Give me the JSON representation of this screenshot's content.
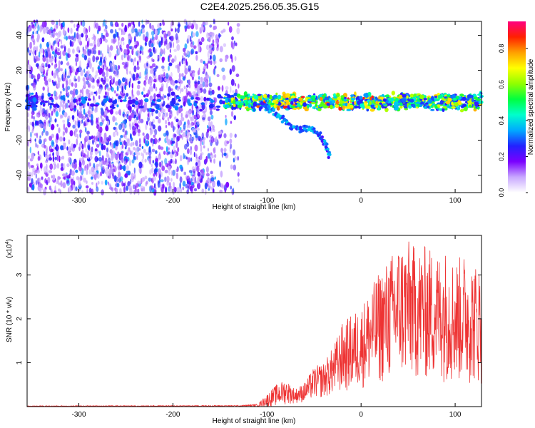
{
  "title": "C2E4.2025.256.05.35.G15",
  "chart_data": [
    {
      "type": "heatmap",
      "name": "spectrogram",
      "xlabel": "Height of straight line (km)",
      "ylabel": "Frequency (Hz)",
      "xlim": [
        -355,
        128
      ],
      "ylim": [
        -50,
        48
      ],
      "xticks": [
        -300,
        -200,
        -100,
        0,
        100
      ],
      "yticks": [
        -40,
        -20,
        0,
        20,
        40
      ],
      "colorbar": {
        "label": "Normalized spectral amplitude",
        "range": [
          0,
          0.95
        ],
        "ticks": [
          "0.0",
          "0.2",
          "0.4",
          "0.6",
          "0.8"
        ],
        "tick_values": [
          0,
          0.2,
          0.4,
          0.6,
          0.8
        ],
        "colors": [
          "#ffffff",
          "#c8a8ff",
          "#7a00ff",
          "#2222ff",
          "#00aaff",
          "#00ffcc",
          "#00ff40",
          "#90ff00",
          "#ffff00",
          "#ffa000",
          "#ff2000",
          "#ff0080"
        ]
      },
      "features": {
        "noise_region_x": [
          -355,
          -130
        ],
        "signal_band_center_hz": 2,
        "signal_band_halfwidth_hz": 4,
        "dip_track": [
          {
            "x": -105,
            "y": 0
          },
          {
            "x": -95,
            "y": -3
          },
          {
            "x": -85,
            "y": -7
          },
          {
            "x": -75,
            "y": -12
          },
          {
            "x": -65,
            "y": -14
          },
          {
            "x": -55,
            "y": -13
          },
          {
            "x": -45,
            "y": -16
          },
          {
            "x": -38,
            "y": -22
          },
          {
            "x": -33,
            "y": -30
          }
        ]
      }
    },
    {
      "type": "line",
      "name": "snr",
      "xlabel": "Height of straight line (km)",
      "ylabel": "SNR (10 * v/v)",
      "yscale_label": "(x10",
      "yscale_exp": "4",
      "xlim": [
        -355,
        128
      ],
      "ylim": [
        0,
        3.9
      ],
      "xticks": [
        -300,
        -200,
        -100,
        0,
        100
      ],
      "yticks": [
        1,
        2,
        3
      ],
      "color": "#ee3333",
      "envelope": {
        "x": [
          -355,
          -130,
          -110,
          -100,
          -90,
          -80,
          -70,
          -60,
          -50,
          -40,
          -30,
          -20,
          -10,
          0,
          10,
          20,
          30,
          40,
          50,
          60,
          70,
          80,
          90,
          100,
          110,
          120,
          128
        ],
        "y_max": [
          0.02,
          0.03,
          0.06,
          0.28,
          0.5,
          0.62,
          0.4,
          0.55,
          0.9,
          1.0,
          1.35,
          1.9,
          2.1,
          2.3,
          2.7,
          3.1,
          3.4,
          3.75,
          3.8,
          3.6,
          3.7,
          3.5,
          3.6,
          3.35,
          3.5,
          3.3,
          3.2
        ],
        "y_min": [
          0.0,
          0.0,
          0.0,
          0.0,
          0.02,
          0.05,
          0.08,
          0.1,
          0.18,
          0.2,
          0.25,
          0.3,
          0.35,
          0.4,
          0.45,
          0.5,
          0.55,
          0.6,
          0.6,
          0.6,
          0.55,
          0.6,
          0.55,
          0.5,
          0.5,
          0.5,
          0.5
        ]
      }
    }
  ]
}
